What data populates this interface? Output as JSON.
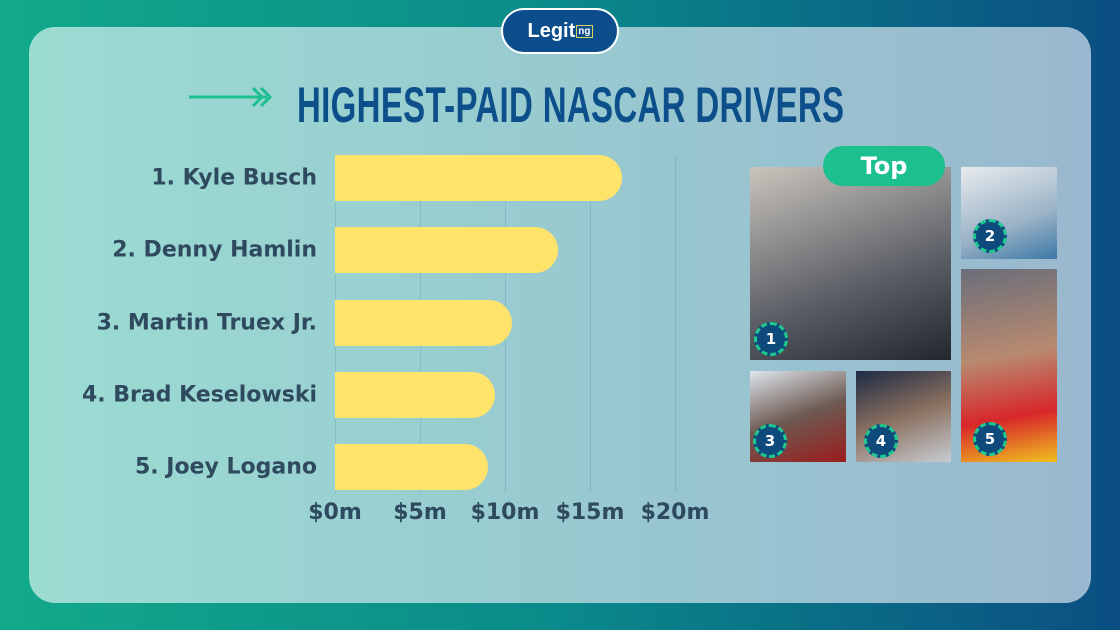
{
  "brand": {
    "logo": "Legit",
    "logo_suffix": "ng"
  },
  "chart_data": {
    "type": "bar",
    "orientation": "horizontal",
    "title": "HIGHEST-PAID NASCAR DRIVERS",
    "categories": [
      "1. Kyle Busch",
      "2. Denny Hamlin",
      "3. Martin Truex Jr.",
      "4. Brad Keselowski",
      "5. Joey Logano"
    ],
    "values": [
      16.9,
      13.1,
      10.4,
      9.4,
      9.0
    ],
    "unit": "$m",
    "xlim": [
      0,
      20
    ],
    "x_ticks": [
      "$0m",
      "$5m",
      "$10m",
      "$15m",
      "$20m"
    ],
    "x_tick_values": [
      0,
      5,
      10,
      15,
      20
    ],
    "grid": true,
    "bar_color": "#ffe36a"
  },
  "photos": {
    "top_label": "Top",
    "badges": [
      "1",
      "2",
      "3",
      "4",
      "5"
    ]
  }
}
